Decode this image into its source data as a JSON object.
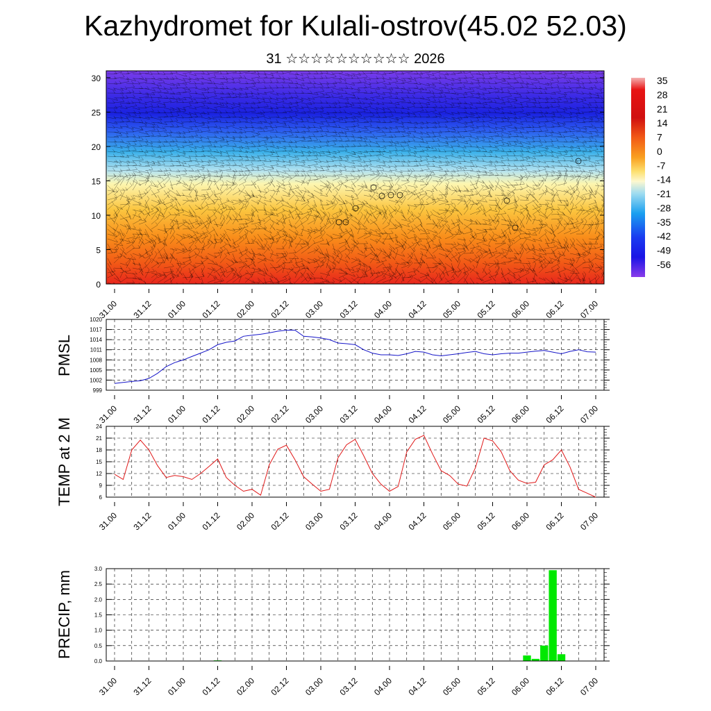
{
  "title": "Kazhydromet for Kulali-ostrov(45.02 52.03)",
  "subtitle": "31 ☆☆☆☆☆☆☆☆☆☆ 2026",
  "x_tick_labels": [
    "31.00",
    "31.12",
    "01.00",
    "01.12",
    "02.00",
    "02.12",
    "03.00",
    "03.12",
    "04.00",
    "04.12",
    "05.00",
    "05.12",
    "06.00",
    "06.12",
    "07.00"
  ],
  "colors": {
    "pmsl_line": "#1414c8",
    "temp_line": "#e01818",
    "precip_bar": "#00e800"
  },
  "chart_data": [
    {
      "type": "heatmap",
      "name_hint": "vertical cross-section",
      "y_ticks": [
        0,
        5,
        10,
        15,
        20,
        25,
        30
      ],
      "ylim": [
        0,
        31
      ],
      "colorbar_labels": [
        "35",
        "28",
        "21",
        "14",
        "7",
        "0",
        "-7",
        "-14",
        "-21",
        "-28",
        "-35",
        "-42",
        "-49",
        "-56"
      ]
    },
    {
      "type": "line",
      "ylabel": "PMSL",
      "ylim": [
        999,
        1020
      ],
      "y_ticks": [
        999,
        1002,
        1005,
        1008,
        1011,
        1014,
        1017,
        1020
      ],
      "x": [
        0,
        1,
        2,
        3,
        4,
        5,
        6,
        7,
        8,
        9,
        10,
        11,
        12,
        13,
        14,
        15,
        16,
        17,
        18,
        19,
        20,
        21,
        22,
        23,
        24,
        25,
        26,
        27,
        28,
        29,
        30,
        31,
        32,
        33,
        34,
        35,
        36,
        37,
        38,
        39,
        40,
        41,
        42,
        43,
        44,
        45,
        46,
        47,
        48,
        49,
        50,
        51,
        52,
        53,
        54,
        55,
        56
      ],
      "values": [
        1001,
        1001.3,
        1001.6,
        1001.8,
        1002.5,
        1004,
        1006,
        1007.2,
        1008,
        1009,
        1010,
        1011,
        1012.5,
        1013.2,
        1013.6,
        1015,
        1015.3,
        1015.6,
        1016,
        1016.5,
        1016.8,
        1016.8,
        1015,
        1014.8,
        1014.5,
        1014,
        1013,
        1012.8,
        1012.5,
        1011,
        1010,
        1009.5,
        1009.5,
        1009.3,
        1009.8,
        1010.5,
        1010.3,
        1009.5,
        1009.2,
        1009.5,
        1009.8,
        1010.2,
        1010.5,
        1009.8,
        1009.5,
        1009.8,
        1010,
        1010,
        1010.3,
        1010.6,
        1010.8,
        1010.3,
        1009.8,
        1010.5,
        1011,
        1010.4,
        1010.3
      ]
    },
    {
      "type": "line",
      "ylabel": "TEMP at 2 M",
      "ylim": [
        6,
        24
      ],
      "y_ticks": [
        6,
        9,
        12,
        15,
        18,
        21,
        24
      ],
      "x": [
        0,
        1,
        2,
        3,
        4,
        5,
        6,
        7,
        8,
        9,
        10,
        11,
        12,
        13,
        14,
        15,
        16,
        17,
        18,
        19,
        20,
        21,
        22,
        23,
        24,
        25,
        26,
        27,
        28,
        29,
        30,
        31,
        32,
        33,
        34,
        35,
        36,
        37,
        38,
        39,
        40,
        41,
        42,
        43,
        44,
        45,
        46,
        47,
        48,
        49,
        50,
        51,
        52,
        53,
        54,
        55,
        56
      ],
      "values": [
        11.8,
        10.5,
        18,
        20.5,
        18,
        14,
        11,
        11.5,
        11.2,
        10.5,
        12,
        13.8,
        15.7,
        11,
        9,
        7.5,
        8,
        6.5,
        14.2,
        18.2,
        19.2,
        15.5,
        11.2,
        9.3,
        7.5,
        8,
        16,
        19.3,
        20.7,
        16.5,
        12,
        9.3,
        7.5,
        8.7,
        17.5,
        20.7,
        21.7,
        17,
        12.7,
        11.5,
        9.3,
        8.8,
        13.5,
        21,
        20.3,
        17.5,
        12.7,
        10.3,
        9.5,
        9.8,
        14.2,
        15.5,
        18,
        13.7,
        8,
        7,
        6
      ]
    },
    {
      "type": "bar",
      "ylabel": "PRECIP, mm",
      "ylim": [
        0,
        3
      ],
      "y_ticks": [
        0.0,
        0.5,
        1.0,
        1.5,
        2.0,
        2.5,
        3.0
      ],
      "y_tick_labels": [
        "0.0",
        "0.5",
        "1.0",
        "1.5",
        "2.0",
        "2.5",
        "3.0"
      ],
      "x": [
        0,
        1,
        2,
        3,
        4,
        5,
        6,
        7,
        8,
        9,
        10,
        11,
        12,
        13,
        14,
        15,
        16,
        17,
        18,
        19,
        20,
        21,
        22,
        23,
        24,
        25,
        26,
        27,
        28,
        29,
        30,
        31,
        32,
        33,
        34,
        35,
        36,
        37,
        38,
        39,
        40,
        41,
        42,
        43,
        44,
        45,
        46,
        47,
        48,
        49,
        50,
        51,
        52,
        53,
        54,
        55,
        56
      ],
      "values": [
        0,
        0,
        0,
        0,
        0,
        0,
        0,
        0,
        0,
        0,
        0,
        0,
        0.02,
        0.01,
        0,
        0,
        0,
        0,
        0,
        0,
        0,
        0,
        0,
        0,
        0,
        0,
        0,
        0,
        0,
        0,
        0,
        0,
        0,
        0,
        0,
        0,
        0,
        0,
        0,
        0,
        0,
        0,
        0.01,
        0,
        0,
        0.01,
        0,
        0,
        0.18,
        0.07,
        0.5,
        2.95,
        0.22,
        0,
        0,
        0,
        0
      ]
    }
  ]
}
